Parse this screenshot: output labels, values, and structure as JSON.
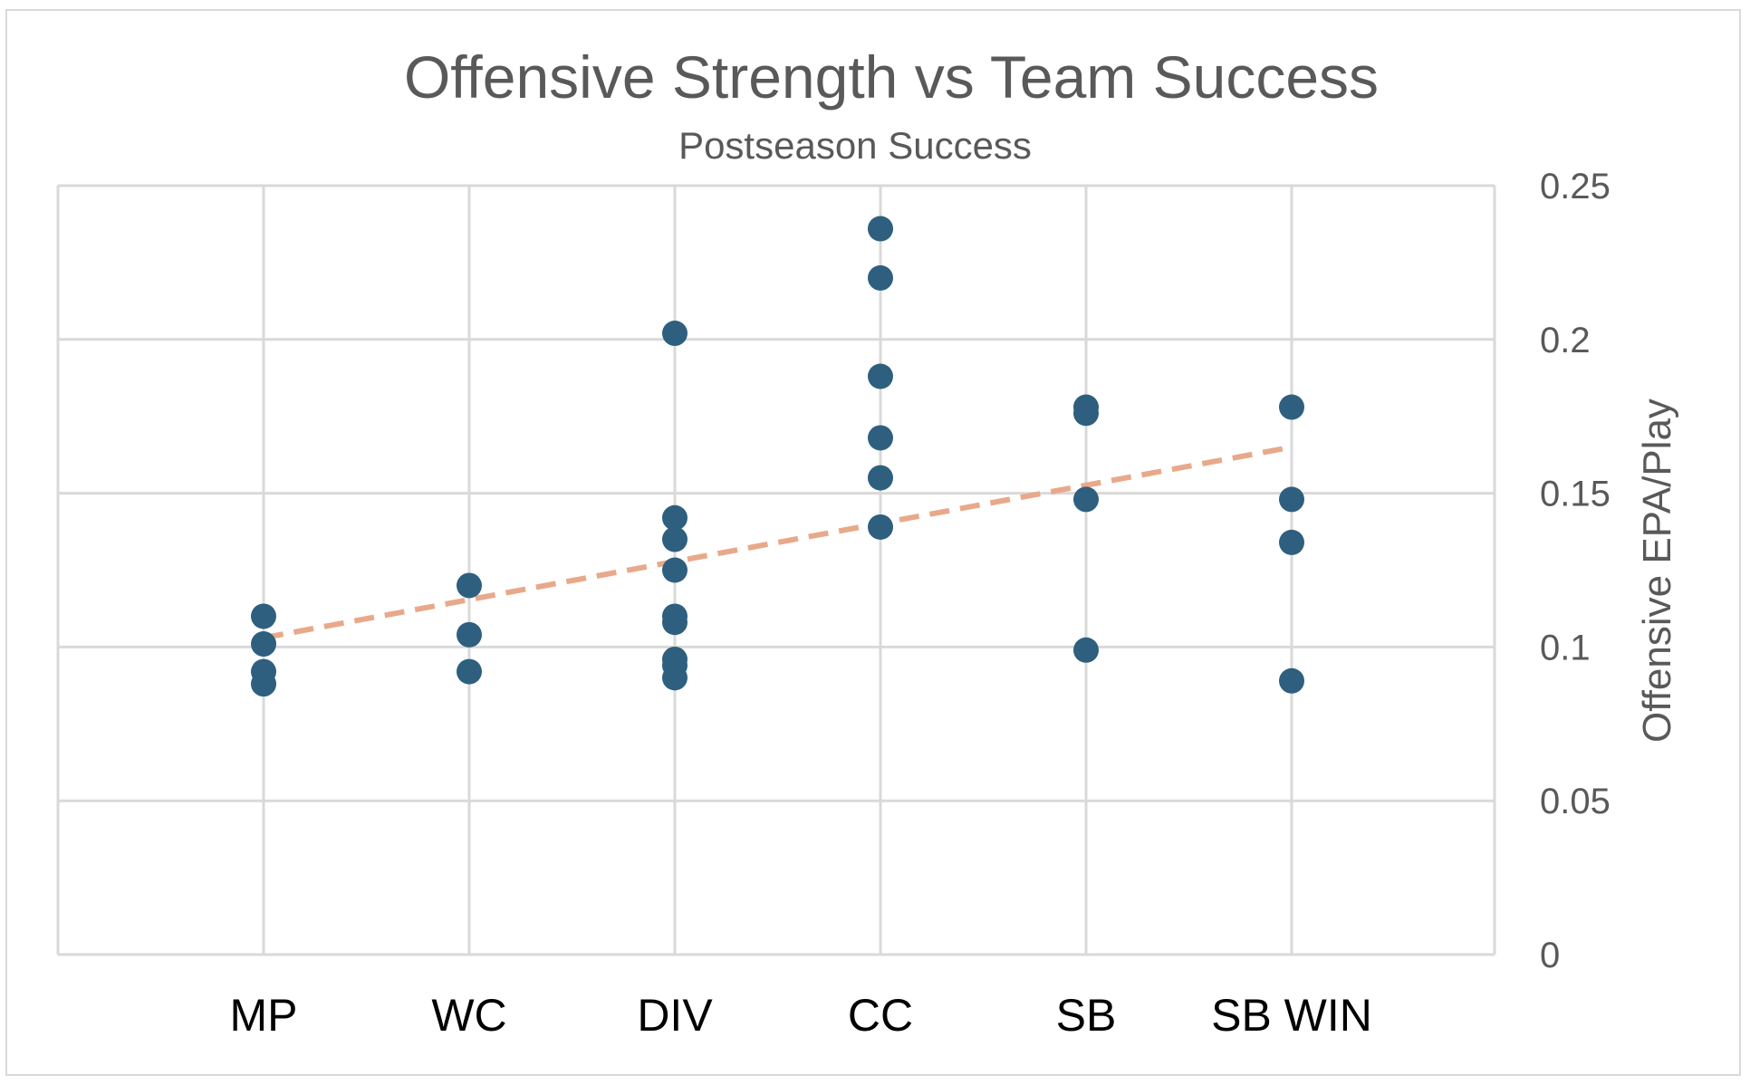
{
  "chart_data": {
    "type": "scatter",
    "title": "Offensive Strength vs Team Success",
    "subtitle": "Postseason Success",
    "xlabel": "",
    "ylabel": "Offensive EPA/Play",
    "categories": [
      "MP",
      "WC",
      "DIV",
      "CC",
      "SB",
      "SB WIN"
    ],
    "ylim": [
      0,
      0.25
    ],
    "yticks": [
      "0",
      "0.05",
      "0.1",
      "0.15",
      "0.2",
      "0.25"
    ],
    "y_axis_position": "right",
    "grid": true,
    "legend": "none",
    "series": [
      {
        "points": [
          {
            "x": "MP",
            "y": 0.11
          },
          {
            "x": "MP",
            "y": 0.101
          },
          {
            "x": "MP",
            "y": 0.092
          },
          {
            "x": "MP",
            "y": 0.088
          },
          {
            "x": "WC",
            "y": 0.12
          },
          {
            "x": "WC",
            "y": 0.104
          },
          {
            "x": "WC",
            "y": 0.092
          },
          {
            "x": "DIV",
            "y": 0.202
          },
          {
            "x": "DIV",
            "y": 0.142
          },
          {
            "x": "DIV",
            "y": 0.135
          },
          {
            "x": "DIV",
            "y": 0.125
          },
          {
            "x": "DIV",
            "y": 0.11
          },
          {
            "x": "DIV",
            "y": 0.108
          },
          {
            "x": "DIV",
            "y": 0.096
          },
          {
            "x": "DIV",
            "y": 0.094
          },
          {
            "x": "DIV",
            "y": 0.09
          },
          {
            "x": "CC",
            "y": 0.236
          },
          {
            "x": "CC",
            "y": 0.22
          },
          {
            "x": "CC",
            "y": 0.188
          },
          {
            "x": "CC",
            "y": 0.168
          },
          {
            "x": "CC",
            "y": 0.155
          },
          {
            "x": "CC",
            "y": 0.139
          },
          {
            "x": "SB",
            "y": 0.178
          },
          {
            "x": "SB",
            "y": 0.176
          },
          {
            "x": "SB",
            "y": 0.148
          },
          {
            "x": "SB",
            "y": 0.099
          },
          {
            "x": "SB WIN",
            "y": 0.178
          },
          {
            "x": "SB WIN",
            "y": 0.148
          },
          {
            "x": "SB WIN",
            "y": 0.134
          },
          {
            "x": "SB WIN",
            "y": 0.089
          }
        ]
      }
    ],
    "trendline": {
      "style": "dashed",
      "from": {
        "x": "MP",
        "y": 0.103
      },
      "to": {
        "x": "SB WIN",
        "y": 0.165
      }
    },
    "colors": {
      "points": "#2e5f7f",
      "trendline": "#e8a98a",
      "grid": "#d9d9d9",
      "text": "#595959"
    }
  }
}
